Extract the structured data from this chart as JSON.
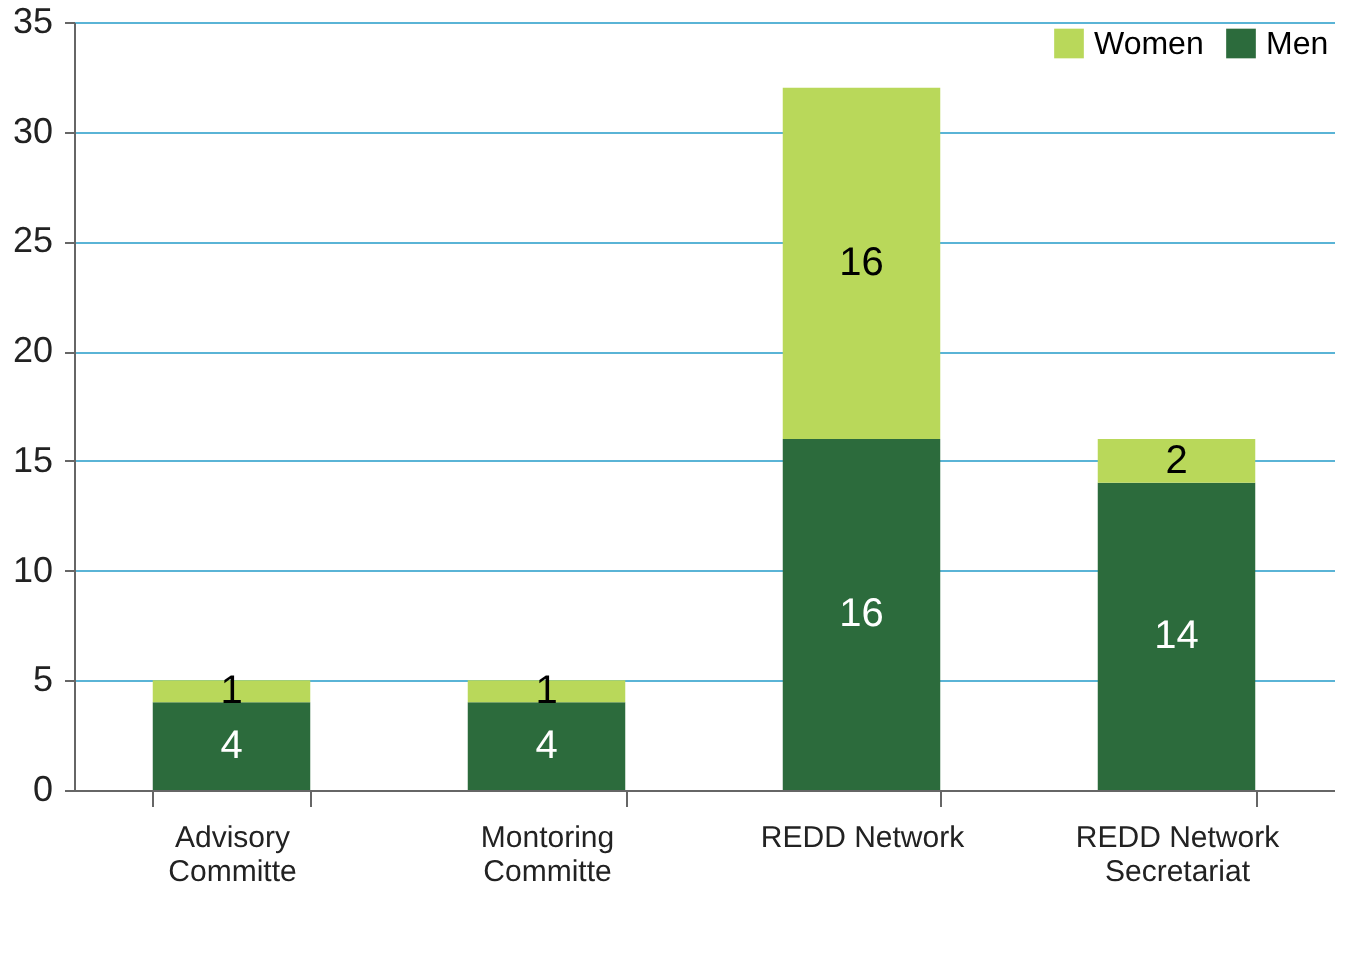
{
  "chart_data": {
    "type": "bar",
    "stacked": true,
    "categories": [
      "Advisory Committe",
      "Montoring Committe",
      "REDD Network",
      "REDD Network Secretariat"
    ],
    "series": [
      {
        "name": "Men",
        "color": "#2c6b3c",
        "values": [
          4,
          4,
          16,
          14
        ]
      },
      {
        "name": "Women",
        "color": "#b9d85a",
        "values": [
          1,
          1,
          16,
          2
        ]
      }
    ],
    "ylim": [
      0,
      35
    ],
    "yticks": [
      0,
      5,
      10,
      15,
      20,
      25,
      30,
      35
    ],
    "grid": "y",
    "legend": "top right",
    "data_labels": true
  }
}
